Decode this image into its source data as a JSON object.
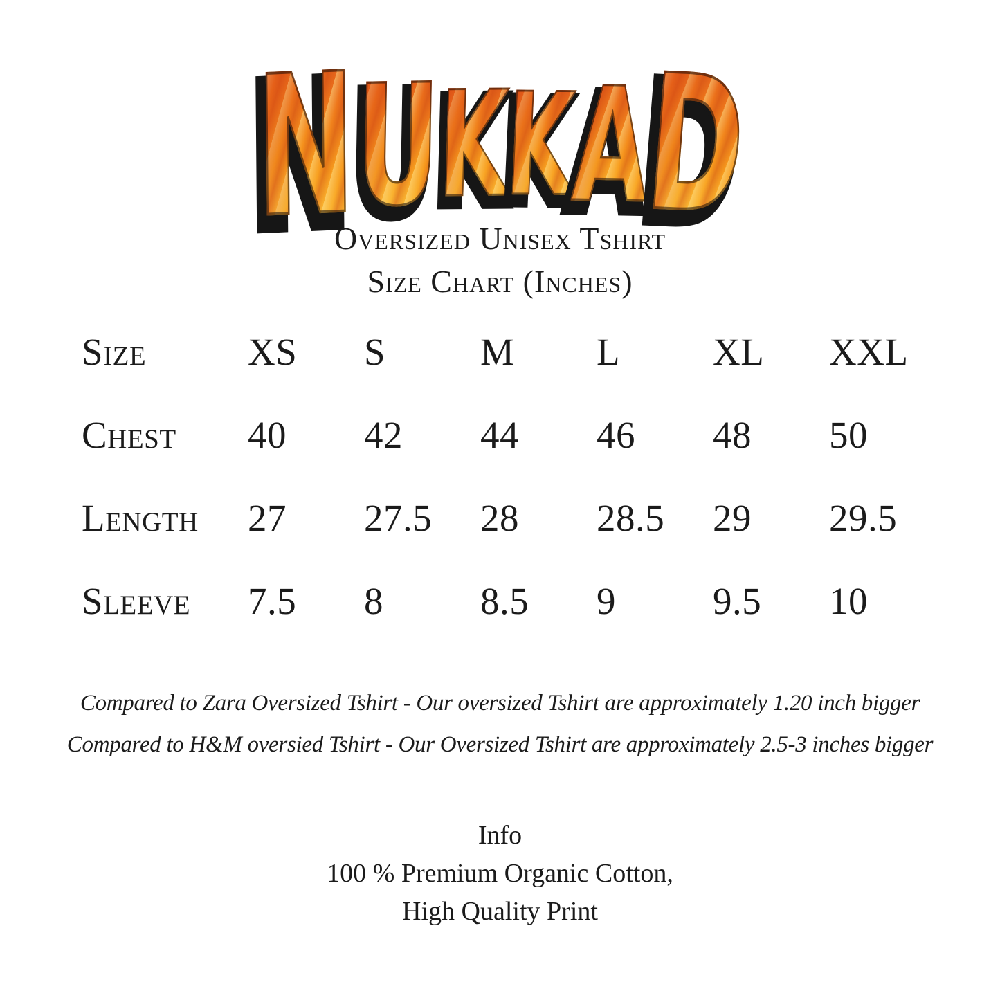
{
  "logo": {
    "text": "NUKKAD",
    "letters": [
      "N",
      "U",
      "K",
      "K",
      "A",
      "D"
    ],
    "colors": {
      "fire_dark": "#dc4f1b",
      "fire_mid": "#f89d1e",
      "fire_yellow": "#fcc741",
      "outline": "#161616"
    }
  },
  "header": {
    "subtitle_line1": "Oversized Unisex Tshirt",
    "subtitle_line2": "Size Chart (Inches)"
  },
  "size_chart": {
    "rows": [
      {
        "label": "Size",
        "values": [
          "XS",
          "S",
          "M",
          "L",
          "XL",
          "XXL"
        ]
      },
      {
        "label": "Chest",
        "values": [
          "40",
          "42",
          "44",
          "46",
          "48",
          "50"
        ]
      },
      {
        "label": "Length",
        "values": [
          "27",
          "27.5",
          "28",
          "28.5",
          "29",
          "29.5"
        ]
      },
      {
        "label": "Sleeve",
        "values": [
          "7.5",
          "8",
          "8.5",
          "9",
          "9.5",
          "10"
        ]
      }
    ]
  },
  "notes": {
    "line1": "Compared to Zara Oversized Tshirt - Our oversized Tshirt are approximately 1.20 inch bigger",
    "line2": "Compared to H&M oversied Tshirt - Our Oversized Tshirt are approximately 2.5-3 inches bigger"
  },
  "info": {
    "heading": "Info",
    "line1": "100 % Premium Organic Cotton,",
    "line2": "High Quality Print"
  }
}
